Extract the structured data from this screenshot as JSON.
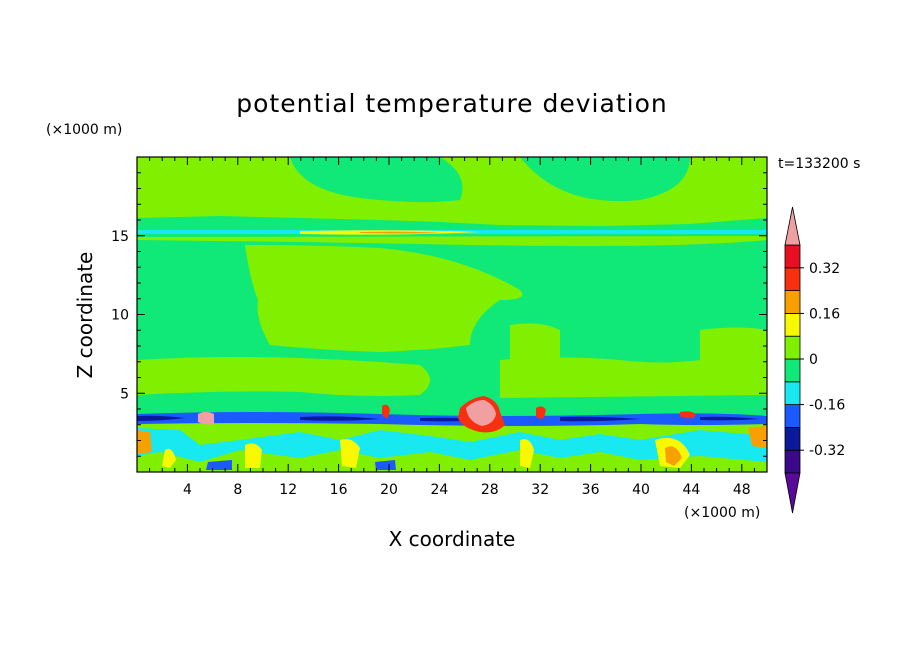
{
  "chart_data": {
    "type": "heatmap",
    "title": "potential temperature deviation",
    "xlabel": "X coordinate",
    "ylabel": "Z coordinate",
    "x_unit": "(×1000 m)",
    "y_unit": "(×1000 m)",
    "time_label": "t=133200 s",
    "xlim": [
      0,
      50
    ],
    "ylim": [
      0,
      20
    ],
    "x_ticks": [
      4,
      8,
      12,
      16,
      20,
      24,
      28,
      32,
      36,
      40,
      44,
      48
    ],
    "y_ticks": [
      5,
      10,
      15
    ],
    "colorbar": {
      "levels": [
        -0.4,
        -0.32,
        -0.24,
        -0.16,
        -0.08,
        0,
        0.08,
        0.16,
        0.24,
        0.32,
        0.4
      ],
      "colors": [
        "#5a0a9a",
        "#3a0a8a",
        "#0a1a9a",
        "#1a5aff",
        "#18e8f0",
        "#10e878",
        "#80f000",
        "#f8f800",
        "#f8a000",
        "#f83010",
        "#e81020",
        "#f0a0a0"
      ],
      "labels": [
        "0.32",
        "0.16",
        "0",
        "-0.16",
        "-0.32"
      ],
      "label_values": [
        0.32,
        0.16,
        0,
        -0.16,
        -0.32
      ]
    }
  }
}
